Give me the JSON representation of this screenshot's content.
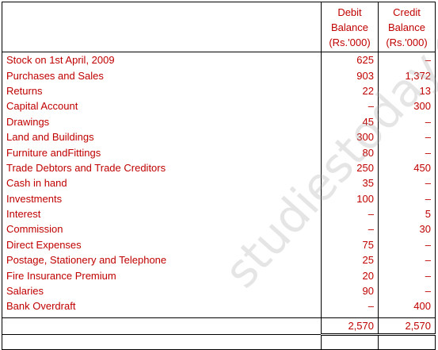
{
  "header": {
    "debit": [
      "Debit",
      "Balance",
      "(Rs.'000)"
    ],
    "credit": [
      "Credit",
      "Balance",
      "(Rs.'000)"
    ]
  },
  "rows": [
    {
      "label": "Stock on 1st April, 2009",
      "debit": "625",
      "credit": "–"
    },
    {
      "label": "Purchases and Sales",
      "debit": "903",
      "credit": "1,372"
    },
    {
      "label": "Returns",
      "debit": "22",
      "credit": "13"
    },
    {
      "label": "Capital Account",
      "debit": "–",
      "credit": "300"
    },
    {
      "label": "Drawings",
      "debit": "45",
      "credit": "–"
    },
    {
      "label": "Land and Buildings",
      "debit": "300",
      "credit": "–"
    },
    {
      "label": "Furniture andFittings",
      "debit": "80",
      "credit": "–"
    },
    {
      "label": "Trade Debtors and Trade Creditors",
      "debit": "250",
      "credit": "450"
    },
    {
      "label": "Cash in hand",
      "debit": "35",
      "credit": "–"
    },
    {
      "label": "Investments",
      "debit": "100",
      "credit": "–"
    },
    {
      "label": "Interest",
      "debit": "–",
      "credit": "5"
    },
    {
      "label": "Commission",
      "debit": "–",
      "credit": "30"
    },
    {
      "label": "Direct Expenses",
      "debit": "75",
      "credit": "–"
    },
    {
      "label": "Postage, Stationery and Telephone",
      "debit": "25",
      "credit": "–"
    },
    {
      "label": "Fire Insurance Premium",
      "debit": "20",
      "credit": "–"
    },
    {
      "label": "Salaries",
      "debit": "90",
      "credit": "–"
    },
    {
      "label": "Bank Overdraft",
      "debit": "–",
      "credit": "400"
    }
  ],
  "totals": {
    "debit": "2,570",
    "credit": "2,570"
  },
  "watermark": "studiestoday.com"
}
